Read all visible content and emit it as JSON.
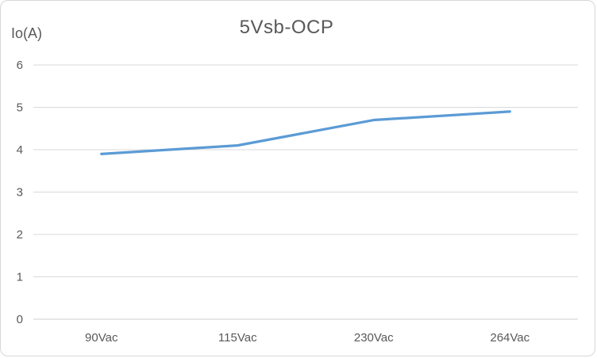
{
  "chart_data": {
    "type": "line",
    "title": "5Vsb-OCP",
    "ylabel": "Io(A)",
    "xlabel": "",
    "categories": [
      "90Vac",
      "115Vac",
      "230Vac",
      "264Vac"
    ],
    "values": [
      3.9,
      4.1,
      4.7,
      4.9
    ],
    "ylim": [
      0,
      6
    ],
    "yticks": [
      0,
      1,
      2,
      3,
      4,
      5,
      6
    ],
    "grid": "horizontal",
    "legend": "none",
    "markers": "none"
  },
  "colors": {
    "line": "#5B9BD5",
    "gridline": "#D9D9D9",
    "axis_line": "#CFCFCF",
    "text": "#595959",
    "border": "#D7D7D7",
    "background": "#FFFFFF"
  }
}
